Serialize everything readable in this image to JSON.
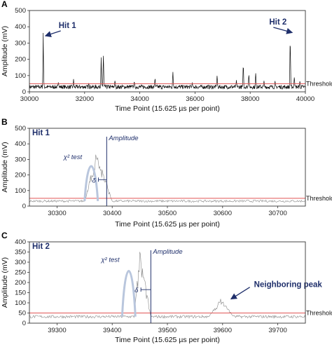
{
  "chart_data": [
    {
      "type": "line",
      "panel_label": "A",
      "xlabel": "Time Point (15.625 µs per point)",
      "ylabel": "Amplitude (mV)",
      "xlim": [
        30000,
        40000
      ],
      "ylim": [
        0,
        500
      ],
      "xticks": [
        "30000",
        "32000",
        "34000",
        "36000",
        "38000",
        "40000"
      ],
      "yticks": [
        "0",
        "100",
        "200",
        "300",
        "400",
        "500"
      ],
      "threshold": {
        "label": "Threshold",
        "value": 50,
        "color": "#e05555"
      },
      "series_color": "#111111",
      "baseline": 30,
      "noise": 12,
      "spikes": [
        {
          "x": 30500,
          "y": 370
        },
        {
          "x": 31050,
          "y": 70
        },
        {
          "x": 31600,
          "y": 80
        },
        {
          "x": 32150,
          "y": 60
        },
        {
          "x": 32600,
          "y": 215
        },
        {
          "x": 32680,
          "y": 270
        },
        {
          "x": 33100,
          "y": 75
        },
        {
          "x": 33800,
          "y": 70
        },
        {
          "x": 34550,
          "y": 95
        },
        {
          "x": 35200,
          "y": 140
        },
        {
          "x": 35900,
          "y": 60
        },
        {
          "x": 36800,
          "y": 110
        },
        {
          "x": 37500,
          "y": 75
        },
        {
          "x": 37750,
          "y": 190
        },
        {
          "x": 37950,
          "y": 130
        },
        {
          "x": 38200,
          "y": 140
        },
        {
          "x": 38500,
          "y": 75
        },
        {
          "x": 38900,
          "y": 70
        },
        {
          "x": 39450,
          "y": 390
        },
        {
          "x": 39600,
          "y": 105
        },
        {
          "x": 39800,
          "y": 70
        }
      ],
      "annotations": [
        {
          "text": "Hit 1",
          "target_x": 30500,
          "target_y": 370
        },
        {
          "text": "Hit 2",
          "target_x": 39450,
          "target_y": 390
        }
      ]
    },
    {
      "type": "line",
      "panel_label": "B",
      "title": "Hit 1",
      "xlabel": "Time Point (15.625 µs per point)",
      "ylabel": "Amplitude (mV)",
      "xlim": [
        30250,
        30750
      ],
      "ylim": [
        0,
        500
      ],
      "xticks": [
        "30300",
        "30400",
        "30500",
        "30600",
        "30700"
      ],
      "yticks": [
        "0",
        "100",
        "200",
        "300",
        "400",
        "500"
      ],
      "threshold": {
        "label": "Threshold",
        "value": 50,
        "color": "#e05555"
      },
      "series_color": "#888888",
      "baseline": 32,
      "noise": 7,
      "peak": {
        "start": 30350,
        "end": 30400,
        "max_x": 30372,
        "max_y": 375
      },
      "chi_square": {
        "label": "χ² test",
        "center_x": 30362,
        "halfwidth": 12,
        "height": 300,
        "color": "#b9c6dd"
      },
      "amplitude_line": {
        "label": "Amplitude",
        "x": 30390,
        "color": "#1f2f6b"
      },
      "delta": {
        "label": "δ",
        "x1": 30375,
        "x2": 30390,
        "y": 170
      }
    },
    {
      "type": "line",
      "panel_label": "C",
      "title": "Hit 2",
      "xlabel": "Time Point (15.625 µs per point)",
      "ylabel": "Amplitude (mV)",
      "xlim": [
        39250,
        39750
      ],
      "ylim": [
        0,
        400
      ],
      "xticks": [
        "39300",
        "39400",
        "39500",
        "39600",
        "39700"
      ],
      "yticks": [
        "0",
        "50",
        "100",
        "150",
        "200",
        "250",
        "300",
        "350",
        "400"
      ],
      "threshold": {
        "label": "Threshold",
        "value": 50,
        "color": "#e05555"
      },
      "series_color": "#888888",
      "baseline": 32,
      "noise": 7,
      "peak": {
        "start": 39440,
        "end": 39470,
        "max_x": 39450,
        "max_y": 375
      },
      "secondary_peak": {
        "start": 39575,
        "end": 39620,
        "max_y": 125
      },
      "chi_square": {
        "label": "χ² test",
        "center_x": 39430,
        "halfwidth": 12,
        "height": 300,
        "color": "#b9c6dd"
      },
      "amplitude_line": {
        "label": "Amplitude",
        "x": 39470,
        "color": "#1f2f6b"
      },
      "delta": {
        "label": "δ",
        "x1": 39452,
        "x2": 39470,
        "y": 165
      },
      "annotations": [
        {
          "text": "Neighboring peak",
          "target_x": 39610,
          "target_y": 115
        }
      ]
    }
  ]
}
